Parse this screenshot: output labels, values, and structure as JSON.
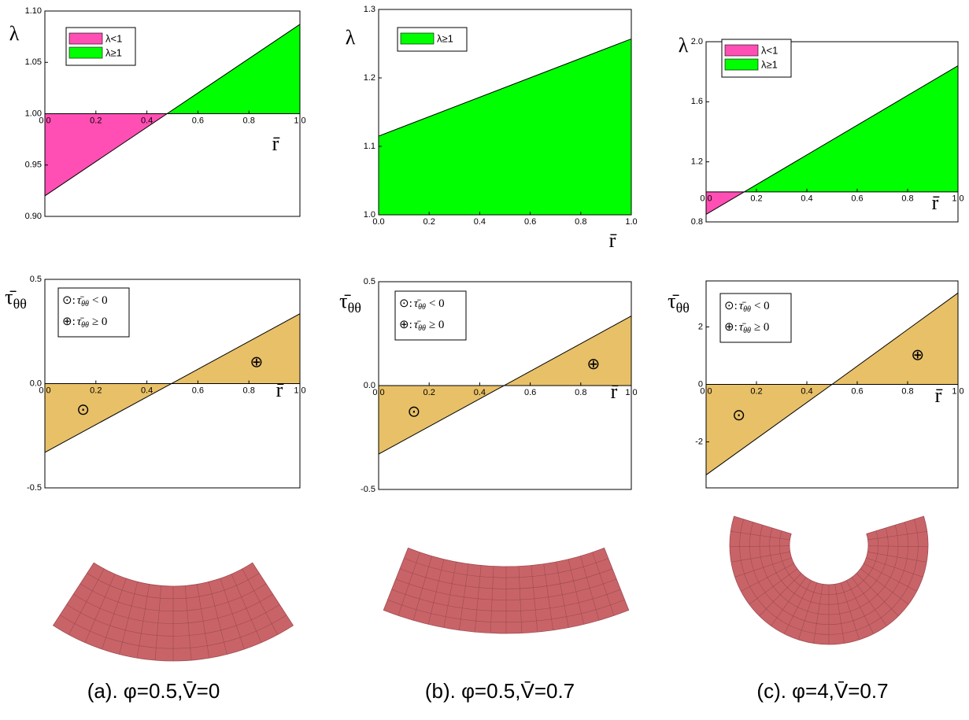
{
  "chart_data": [
    {
      "type": "area",
      "ylabel": "λ",
      "xlabel": "r̄",
      "xlim": [
        0,
        1
      ],
      "ylim": [
        0.9,
        1.1
      ],
      "baseline": 1,
      "xticks": [
        {
          "value": 0,
          "label": "0.0"
        },
        0.2,
        0.4,
        0.6,
        0.8,
        {
          "value": 1,
          "label": "1.0"
        }
      ],
      "yticks": [
        {
          "value": 0.9,
          "label": "0.90"
        },
        0.95,
        {
          "value": 1,
          "label": "1.00"
        },
        1.05,
        {
          "value": 1.1,
          "label": "1.10"
        }
      ],
      "x": [
        0,
        1
      ],
      "values": [
        0.92,
        1.087
      ],
      "fill_colors": {
        "below": "#ff4fb4",
        "above": "#00ff00"
      },
      "legend": [
        {
          "name": "λ<1",
          "color": "#ff4fb4"
        },
        {
          "name": "λ≥1",
          "color": "#00ff00"
        }
      ]
    },
    {
      "type": "area",
      "ylabel": "λ",
      "xlabel": "r̄",
      "xlim": [
        0,
        1
      ],
      "ylim": [
        1,
        1.3
      ],
      "baseline": 1,
      "xticks": [
        {
          "value": 0,
          "label": "0.0"
        },
        0.2,
        0.4,
        0.6,
        0.8,
        {
          "value": 1,
          "label": "1.0"
        }
      ],
      "yticks": [
        {
          "value": 1,
          "label": "1.0"
        },
        1.1,
        1.2,
        1.3
      ],
      "x": [
        0,
        1
      ],
      "values": [
        1.115,
        1.257
      ],
      "fill_colors": {
        "below": "#ff4fb4",
        "above": "#00ff00"
      },
      "legend": [
        {
          "name": "λ≥1",
          "color": "#00ff00"
        }
      ]
    },
    {
      "type": "area",
      "ylabel": "λ",
      "xlabel": "r̄",
      "xlim": [
        0,
        1
      ],
      "ylim": [
        0.8,
        2
      ],
      "baseline": 1,
      "xticks": [
        {
          "value": 0,
          "label": "0.0"
        },
        0.2,
        0.4,
        0.6,
        0.8,
        {
          "value": 1,
          "label": "1.0"
        }
      ],
      "yticks": [
        0.8,
        1.2,
        1.6,
        {
          "value": 2,
          "label": "2.0"
        }
      ],
      "x": [
        0,
        1
      ],
      "values": [
        0.85,
        1.84
      ],
      "fill_colors": {
        "below": "#ff4fb4",
        "above": "#00ff00"
      },
      "legend": [
        {
          "name": "λ<1",
          "color": "#ff4fb4"
        },
        {
          "name": "λ≥1",
          "color": "#00ff00"
        }
      ]
    },
    {
      "type": "area",
      "ylabel": "τ̄",
      "ylabel_sub": "θθ",
      "xlabel": "r̄",
      "xlim": [
        0,
        1
      ],
      "ylim": [
        -0.5,
        0.5
      ],
      "baseline": 0,
      "xticks": [
        {
          "value": 0,
          "label": "0.0"
        },
        0.2,
        0.4,
        0.6,
        0.8,
        {
          "value": 1,
          "label": "1.0"
        }
      ],
      "yticks": [
        -0.5,
        {
          "value": 0,
          "label": "0.0"
        },
        0.5
      ],
      "x": [
        0,
        1
      ],
      "values": [
        -0.33,
        0.335
      ],
      "fill_colors": {
        "below": "#e8c068",
        "above": "#e8c068"
      },
      "legend": [
        {
          "symbol": "⊙:",
          "name": "τ̄",
          "sub": "θθ",
          "relation": "< 0"
        },
        {
          "symbol": "⊕:",
          "name": "τ̄",
          "sub": "θθ",
          "relation": "≥ 0"
        }
      ],
      "annotations": [
        {
          "text": "⊙",
          "x": 0.15,
          "y": -0.13
        },
        {
          "text": "⊕",
          "x": 0.83,
          "y": 0.1
        }
      ]
    },
    {
      "type": "area",
      "ylabel": "τ̄",
      "ylabel_sub": "θθ",
      "xlabel": "r̄",
      "xlim": [
        0,
        1
      ],
      "ylim": [
        -0.5,
        0.5
      ],
      "baseline": 0,
      "xticks": [
        {
          "value": 0,
          "label": "0.0"
        },
        0.2,
        0.4,
        0.6,
        0.8,
        {
          "value": 1,
          "label": "1.0"
        }
      ],
      "yticks": [
        -0.5,
        {
          "value": 0,
          "label": "0.0"
        },
        0.5
      ],
      "x": [
        0,
        1
      ],
      "values": [
        -0.33,
        0.335
      ],
      "fill_colors": {
        "below": "#e8c068",
        "above": "#e8c068"
      },
      "legend": [
        {
          "symbol": "⊙:",
          "name": "τ̄",
          "sub": "θθ",
          "relation": "< 0"
        },
        {
          "symbol": "⊕:",
          "name": "τ̄",
          "sub": "θθ",
          "relation": "≥ 0"
        }
      ],
      "annotations": [
        {
          "text": "⊙",
          "x": 0.14,
          "y": -0.13
        },
        {
          "text": "⊕",
          "x": 0.85,
          "y": 0.1
        }
      ]
    },
    {
      "type": "area",
      "ylabel": "τ̄",
      "ylabel_sub": "θθ",
      "xlabel": "r̄",
      "xlim": [
        0,
        1
      ],
      "ylim": [
        -3.6,
        3.6
      ],
      "baseline": 0,
      "xticks": [
        {
          "value": 0,
          "label": "0.0"
        },
        0.2,
        0.4,
        0.6,
        0.8,
        {
          "value": 1,
          "label": "1.0"
        }
      ],
      "yticks": [
        -2,
        0,
        2
      ],
      "x": [
        0,
        0.5,
        1
      ],
      "values": [
        -3.15,
        0,
        3.18
      ],
      "fill_colors": {
        "below": "#e8c068",
        "above": "#e8c068"
      },
      "legend": [
        {
          "symbol": "⊙:",
          "name": "τ̄",
          "sub": "θθ",
          "relation": "< 0"
        },
        {
          "symbol": "⊕:",
          "name": "τ̄",
          "sub": "θθ",
          "relation": "≥ 0"
        }
      ],
      "annotations": [
        {
          "text": "⊙",
          "x": 0.13,
          "y": -1.1
        },
        {
          "text": "⊕",
          "x": 0.84,
          "y": 1.0
        }
      ]
    }
  ],
  "captions": [
    "(a). φ=0.5,V̄=0",
    "(b). φ=0.5,V̄=0.7",
    "(c). φ=4,V̄=0.7"
  ]
}
